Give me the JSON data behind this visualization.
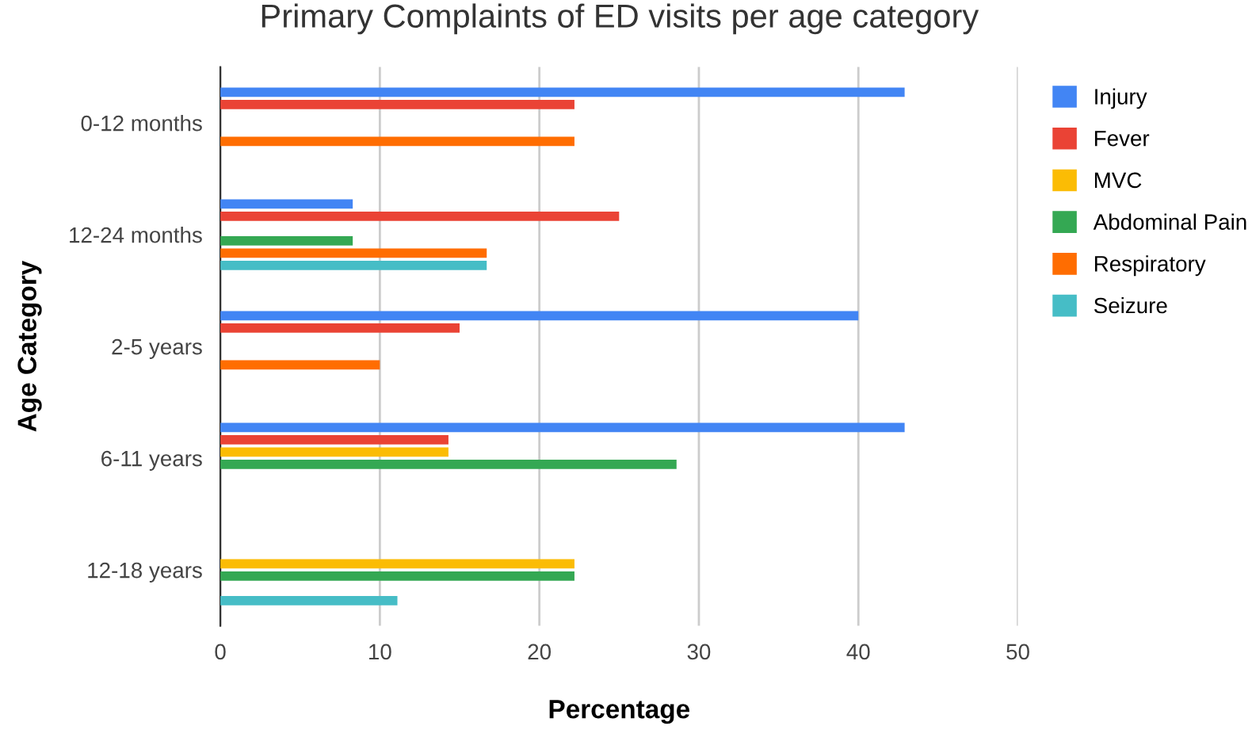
{
  "chart_data": {
    "type": "bar",
    "orientation": "horizontal",
    "title": "Primary Complaints of ED visits per age category",
    "xlabel": "Percentage",
    "ylabel": "Age Category",
    "categories": [
      "0-12 months",
      "12-24 months",
      "2-5 years",
      "6-11 years",
      "12-18 years"
    ],
    "series": [
      {
        "name": "Injury",
        "color": "#4285f4",
        "values": [
          42.9,
          8.3,
          40,
          42.9,
          null
        ]
      },
      {
        "name": "Fever",
        "color": "#ea4335",
        "values": [
          22.2,
          25,
          15,
          14.3,
          null
        ]
      },
      {
        "name": "MVC",
        "color": "#fbbc04",
        "values": [
          null,
          null,
          null,
          14.3,
          22.2
        ]
      },
      {
        "name": "Abdominal Pain",
        "color": "#34a853",
        "values": [
          null,
          8.3,
          null,
          28.6,
          22.2
        ]
      },
      {
        "name": "Respiratory",
        "color": "#ff6d01",
        "values": [
          22.2,
          16.7,
          10,
          null,
          null
        ]
      },
      {
        "name": "Seizure",
        "color": "#46bdc6",
        "values": [
          null,
          16.7,
          null,
          null,
          11.1
        ]
      }
    ],
    "xlim": [
      0,
      50
    ],
    "xticks": [
      0,
      10,
      20,
      30,
      40,
      50
    ],
    "grid": "x",
    "legend": "right"
  }
}
